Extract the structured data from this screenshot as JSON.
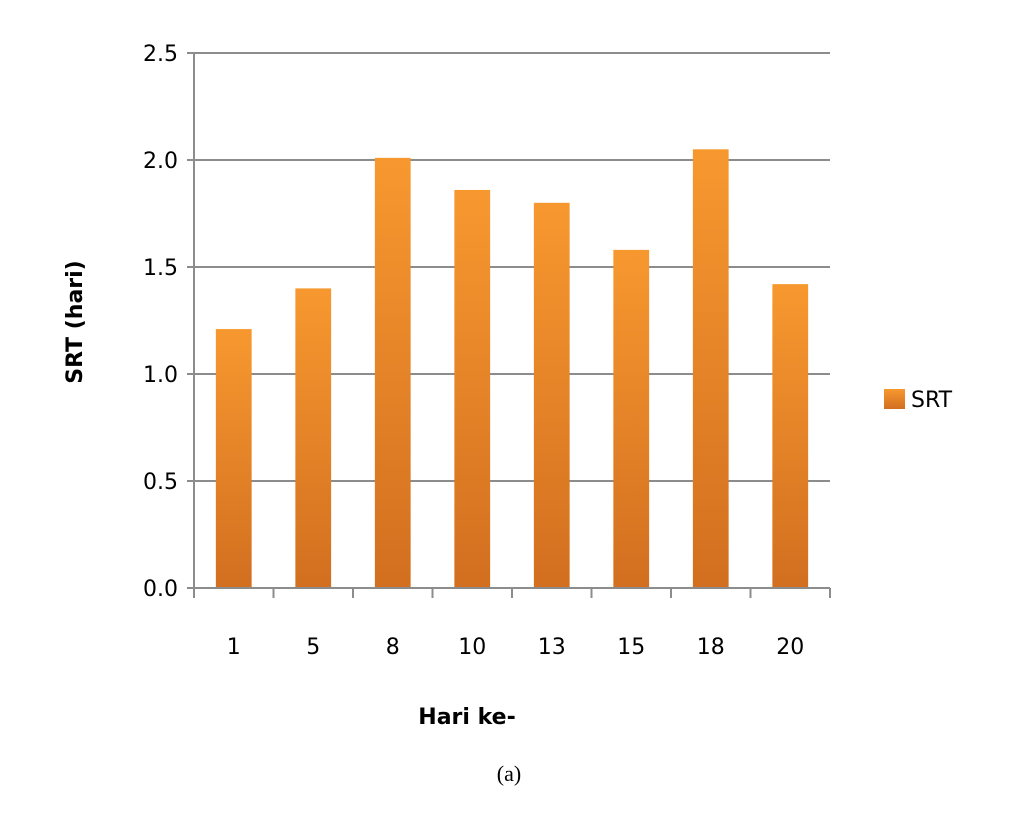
{
  "chart_data": {
    "type": "bar",
    "categories": [
      "1",
      "5",
      "8",
      "10",
      "13",
      "15",
      "18",
      "20"
    ],
    "series": [
      {
        "name": "SRT",
        "values": [
          1.21,
          1.4,
          2.01,
          1.86,
          1.8,
          1.58,
          2.05,
          1.42
        ]
      }
    ],
    "title": "",
    "xlabel": "Hari ke-",
    "ylabel": "SRT (hari)",
    "ylim": [
      0,
      2.5
    ],
    "yticks": [
      "0.0",
      "0.5",
      "1.0",
      "1.5",
      "2.0",
      "2.5"
    ],
    "grid": true,
    "legend": "right",
    "colors": {
      "bar_top": "#f7982f",
      "bar_bottom": "#d26f20",
      "grid": "#8c8c8c",
      "axis": "#8c8c8c"
    }
  },
  "caption": "(a)"
}
